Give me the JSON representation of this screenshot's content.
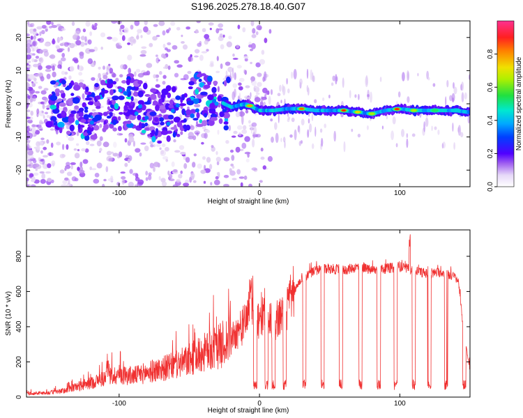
{
  "figure_title": "S196.2025.278.18.40.G07",
  "chart_data": [
    {
      "type": "heatmap",
      "title": "S196.2025.278.18.40.G07",
      "xlabel": "Height of straight line (km)",
      "ylabel": "Frequency (Hz)",
      "xlim": [
        -166,
        150
      ],
      "ylim": [
        -25,
        25
      ],
      "x_ticks": [
        -100,
        0,
        100
      ],
      "y_ticks": [
        -20,
        -10,
        0,
        10,
        20
      ],
      "colorbar": {
        "label": "Normalized spectral amplitude",
        "range": [
          0,
          1
        ],
        "ticks": [
          0.0,
          0.2,
          0.4,
          0.6,
          0.8
        ],
        "colors": [
          "#ffffff",
          "#d8c0f0",
          "#9a4bf0",
          "#5b00ff",
          "#0030ff",
          "#00b0ff",
          "#00f0c0",
          "#30e030",
          "#e0f000",
          "#ff9000",
          "#ff2000",
          "#ff30a0"
        ]
      },
      "ridge": {
        "description_points_x": [
          -145,
          -130,
          -120,
          -110,
          -100,
          -90,
          -80,
          -70,
          -60,
          -50,
          -40,
          -30,
          -20,
          -10,
          0,
          10,
          20,
          30,
          40,
          50,
          60,
          70,
          80,
          90,
          100,
          110,
          120,
          130,
          140,
          148
        ],
        "description_points_y": [
          0,
          -2,
          -3,
          -1,
          0,
          1,
          -2,
          -4,
          -2,
          0,
          2,
          1,
          -1,
          0,
          -2,
          -2,
          -1.5,
          -1.5,
          -2,
          -2,
          -2,
          -2.5,
          -3,
          -2,
          -1.5,
          -2,
          -2,
          -2,
          -2,
          -2.5
        ],
        "peak_amplitude_points_x": [
          -7,
          30,
          60,
          70,
          80,
          98,
          110,
          125,
          140
        ],
        "peak_amplitude_values": [
          0.8,
          0.85,
          0.9,
          0.75,
          0.7,
          0.9,
          0.7,
          0.6,
          0.5
        ]
      }
    },
    {
      "type": "line",
      "title": "",
      "xlabel": "Height of straight line (km)",
      "ylabel": "SNR (10 * v/v)",
      "xlim": [
        -166,
        150
      ],
      "ylim": [
        0,
        950
      ],
      "x_ticks": [
        -100,
        0,
        100
      ],
      "y_ticks": [
        0,
        200,
        400,
        600,
        800
      ],
      "line_color": "#f03030",
      "series": [
        {
          "name": "SNR",
          "x": [
            -166,
            -150,
            -140,
            -130,
            -120,
            -110,
            -100,
            -90,
            -80,
            -70,
            -60,
            -50,
            -40,
            -30,
            -20,
            -15,
            -10,
            -8,
            -5,
            -2,
            0,
            5,
            10,
            15,
            20,
            25,
            30,
            40,
            50,
            60,
            70,
            80,
            90,
            100,
            110,
            120,
            130,
            140,
            142,
            145,
            150
          ],
          "y": [
            20,
            25,
            35,
            60,
            80,
            110,
            130,
            120,
            140,
            160,
            180,
            210,
            250,
            280,
            340,
            380,
            420,
            520,
            560,
            440,
            460,
            500,
            420,
            460,
            520,
            600,
            680,
            720,
            730,
            720,
            740,
            720,
            730,
            740,
            720,
            700,
            710,
            680,
            650,
            400,
            150
          ]
        }
      ],
      "dropouts_x": [
        -3,
        5,
        10,
        18,
        32,
        45,
        58,
        72,
        85,
        97,
        110,
        121,
        133,
        146
      ],
      "dropout_level": 100,
      "spike_x": 107,
      "spike_y": 950
    }
  ]
}
